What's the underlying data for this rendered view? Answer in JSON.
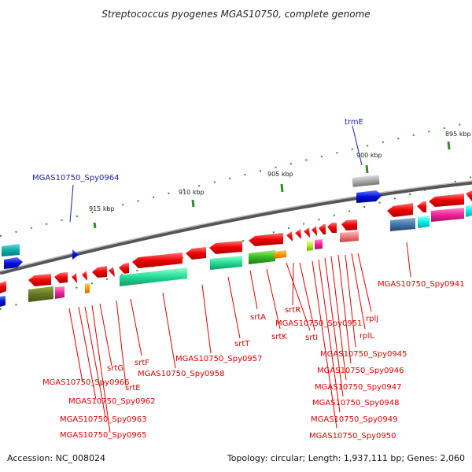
{
  "title": "Streptococcus pyogenes MGAS10750, complete genome",
  "footer": {
    "accession": "Accession: NC_008024",
    "summary": "Topology: circular; Length: 1,937,111 bp; Genes: 2,060"
  },
  "ticks": [
    "895 kbp",
    "900 kbp",
    "905 kbp",
    "910 kbp",
    "915 kbp"
  ],
  "colors": {
    "backbone": "#666666",
    "tick": "#2e8b2e",
    "label_red": "#dd0000",
    "label_blue": "#1a1aa6"
  },
  "labels": {
    "trmE": "trmE",
    "spy0964": "MGAS10750_Spy0964",
    "spy0941": "MGAS10750_Spy0941",
    "rplJ": "rplJ",
    "rplL": "rplL",
    "spy0945": "MGAS10750_Spy0945",
    "spy0946": "MGAS10750_Spy0946",
    "spy0947": "MGAS10750_Spy0947",
    "spy0948": "MGAS10750_Spy0948",
    "spy0949": "MGAS10750_Spy0949",
    "spy0950": "MGAS10750_Spy0950",
    "srtR": "srtR",
    "spy0951": "MGAS10750_Spy0951",
    "srtI": "srtI",
    "srtA": "srtA",
    "srtK": "srtK",
    "srtT": "srtT",
    "spy0957": "MGAS10750_Spy0957",
    "spy0958": "MGAS10750_Spy0958",
    "srtF": "srtF",
    "srtG": "srtG",
    "srtE": "srtE",
    "spy0966": "MGAS10750_Spy0966",
    "spy0962": "MGAS10750_Spy0962",
    "spy0963": "MGAS10750_Spy0963",
    "spy0965": "MGAS10750_Spy0965"
  }
}
